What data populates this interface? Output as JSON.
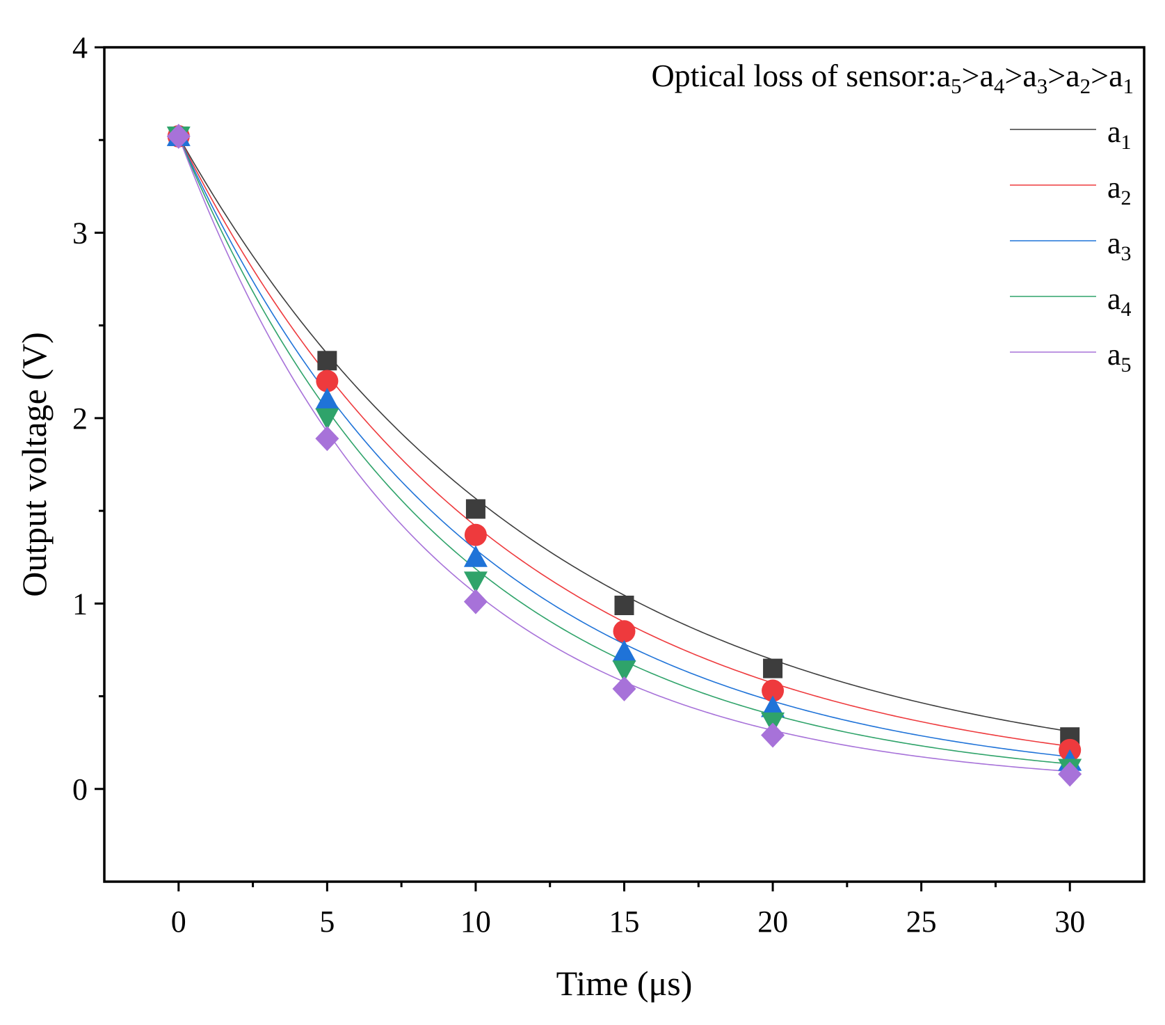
{
  "chart_data": {
    "type": "scatter",
    "xlabel": "Time (μs)",
    "ylabel": "Output voltage (V)",
    "xlim": [
      -2.5,
      32.5
    ],
    "ylim": [
      -0.5,
      4
    ],
    "x_major_ticks": [
      0,
      5,
      10,
      15,
      20,
      25,
      30
    ],
    "x_minor_ticks": [
      2.5,
      7.5,
      12.5,
      17.5,
      22.5,
      27.5
    ],
    "y_major_ticks": [
      0,
      1,
      2,
      3,
      4
    ],
    "y_minor_ticks": [
      0.5,
      1.5,
      2.5,
      3.5
    ],
    "x_tick_labels": [
      "0",
      "5",
      "10",
      "15",
      "20",
      "25",
      "30"
    ],
    "y_tick_labels": [
      "0",
      "1",
      "2",
      "3",
      "4"
    ],
    "annotation": {
      "text": "Optical loss of sensor:",
      "parts": [
        {
          "base": "a",
          "sub": "5"
        },
        {
          "sep": ">"
        },
        {
          "base": "a",
          "sub": "4"
        },
        {
          "sep": ">"
        },
        {
          "base": "a",
          "sub": "3"
        },
        {
          "sep": ">"
        },
        {
          "base": "a",
          "sub": "2"
        },
        {
          "sep": ">"
        },
        {
          "base": "a",
          "sub": "1"
        }
      ]
    },
    "legend_position": "top-right",
    "series": [
      {
        "name": "a1",
        "legend_base": "a",
        "legend_sub": "1",
        "color": "#3d3d3d",
        "line_color": "#3d3d3d",
        "marker": "square",
        "x": [
          0,
          5,
          10,
          15,
          20,
          30
        ],
        "values": [
          3.52,
          2.31,
          1.51,
          0.99,
          0.65,
          0.28
        ],
        "fit_tau": 12.35
      },
      {
        "name": "a2",
        "legend_base": "a",
        "legend_sub": "2",
        "color": "#ee3a3d",
        "line_color": "#ee3a3d",
        "marker": "circle",
        "x": [
          0,
          5,
          10,
          15,
          20,
          30
        ],
        "values": [
          3.52,
          2.2,
          1.37,
          0.85,
          0.53,
          0.21
        ],
        "fit_tau": 11.0
      },
      {
        "name": "a3",
        "legend_base": "a",
        "legend_sub": "3",
        "color": "#1f73d8",
        "line_color": "#1f73d8",
        "marker": "triangle-up",
        "x": [
          0,
          5,
          10,
          15,
          20,
          30
        ],
        "values": [
          3.52,
          2.1,
          1.25,
          0.74,
          0.44,
          0.15
        ],
        "fit_tau": 9.97
      },
      {
        "name": "a4",
        "legend_base": "a",
        "legend_sub": "4",
        "color": "#2fa36a",
        "line_color": "#2fa36a",
        "marker": "triangle-down",
        "x": [
          0,
          5,
          10,
          15,
          20,
          30
        ],
        "values": [
          3.52,
          2.0,
          1.12,
          0.64,
          0.36,
          0.11
        ],
        "fit_tau": 9.2
      },
      {
        "name": "a5",
        "legend_base": "a",
        "legend_sub": "5",
        "color": "#a772d9",
        "line_color": "#a772d9",
        "marker": "diamond",
        "x": [
          0,
          5,
          10,
          15,
          20,
          30
        ],
        "values": [
          3.52,
          1.89,
          1.01,
          0.54,
          0.29,
          0.08
        ],
        "fit_tau": 8.3
      }
    ]
  }
}
